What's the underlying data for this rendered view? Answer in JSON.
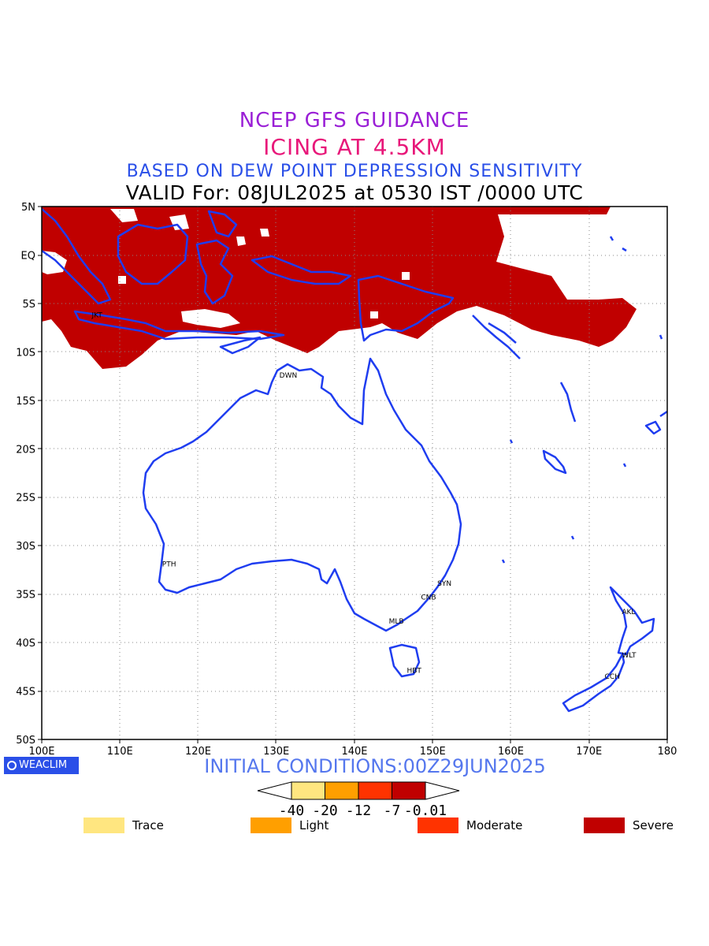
{
  "header": {
    "line1": "NCEP GFS GUIDANCE",
    "line2": "ICING AT 4.5KM",
    "line3": "BASED ON DEW POINT DEPRESSION SENSITIVITY",
    "line4": "VALID For: 08JUL2025 at 0530 IST /0000 UTC"
  },
  "axes": {
    "lat_labels": [
      "5N",
      "EQ",
      "5S",
      "10S",
      "15S",
      "20S",
      "25S",
      "30S",
      "35S",
      "40S",
      "45S",
      "50S"
    ],
    "lon_labels": [
      "100E",
      "110E",
      "120E",
      "130E",
      "140E",
      "150E",
      "160E",
      "170E",
      "180"
    ],
    "lat_range": [
      5,
      -50
    ],
    "lon_range": [
      100,
      180
    ]
  },
  "cities": [
    {
      "label": "JKT",
      "lon": 107,
      "lat": -6.2
    },
    {
      "label": "DWN",
      "lon": 131,
      "lat": -12.4
    },
    {
      "label": "PTH",
      "lon": 116,
      "lat": -31.9
    },
    {
      "label": "SYN",
      "lon": 151.2,
      "lat": -33.9
    },
    {
      "label": "CNB",
      "lon": 149.1,
      "lat": -35.3
    },
    {
      "label": "MLB",
      "lon": 145,
      "lat": -37.8
    },
    {
      "label": "HBT",
      "lon": 147.3,
      "lat": -42.9
    },
    {
      "label": "AKL",
      "lon": 174.8,
      "lat": -36.8
    },
    {
      "label": "WLT",
      "lon": 174.8,
      "lat": -41.3
    },
    {
      "label": "CCH",
      "lon": 172.6,
      "lat": -43.5
    }
  ],
  "colorbar": {
    "ticks": [
      "-40",
      "-20",
      "-12",
      "-7",
      "-0.01"
    ],
    "colors": [
      "#ffe680",
      "#ff9f00",
      "#ff3300",
      "#c00000"
    ]
  },
  "legend": [
    {
      "label": "Trace",
      "color": "#ffe680"
    },
    {
      "label": "Light",
      "color": "#ff9f00"
    },
    {
      "label": "Moderate",
      "color": "#ff3300"
    },
    {
      "label": "Severe",
      "color": "#c00000"
    }
  ],
  "footer": {
    "badge": "WEACLIM",
    "initial_conditions": "INITIAL CONDITIONS:00Z29JUN2025"
  },
  "colors": {
    "coast": "#1f3df0",
    "severe": "#c00000"
  }
}
